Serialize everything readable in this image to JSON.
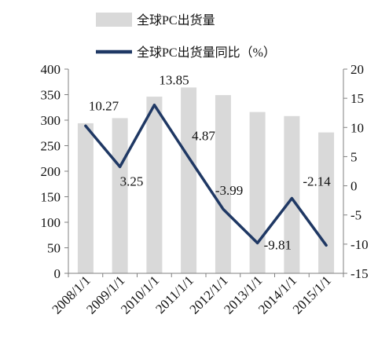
{
  "chart_data": {
    "type": "bar",
    "categories": [
      "2008/1/1",
      "2009/1/1",
      "2010/1/1",
      "2011/1/1",
      "2012/1/1",
      "2013/1/1",
      "2014/1/1",
      "2015/1/1"
    ],
    "series": [
      {
        "name": "全球PC出货量",
        "type": "bar",
        "axis": "left",
        "color": "#d9d9d9",
        "values": [
          294,
          304,
          346,
          364,
          349,
          316,
          308,
          276
        ]
      },
      {
        "name": "全球PC出货量同比（%）",
        "type": "line",
        "axis": "right",
        "color": "#1f3864",
        "values": [
          10.27,
          3.25,
          13.85,
          4.87,
          -3.99,
          -9.81,
          -2.14,
          -10.2
        ],
        "data_labels": [
          "10.27",
          "3.25",
          "13.85",
          "4.87",
          "-3.99",
          "-9.81",
          "-2.14",
          ""
        ]
      }
    ],
    "y_left": {
      "ylim": [
        0,
        400
      ],
      "ticks": [
        "0",
        "50",
        "100",
        "150",
        "200",
        "250",
        "300",
        "350",
        "400"
      ]
    },
    "y_right": {
      "ylim": [
        -15,
        20
      ],
      "ticks": [
        "-15",
        "-10",
        "-5",
        "0",
        "5",
        "10",
        "15",
        "20"
      ]
    },
    "title": "",
    "xlabel": "",
    "ylabel": "",
    "legend": "top-center",
    "grid": false
  }
}
